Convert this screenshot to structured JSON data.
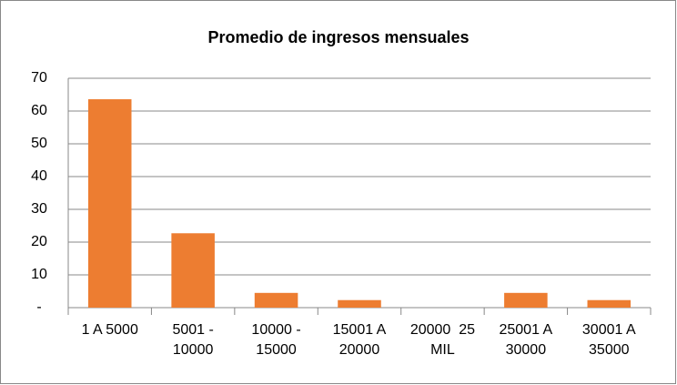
{
  "chart_data": {
    "type": "bar",
    "title": "Promedio de ingresos mensuales",
    "categories": [
      "1 A 5000",
      "5001 - 10000",
      "10000 - 15000",
      "15001 A 20000",
      "20000  25 MIL",
      "25001 A 30000",
      "30001 A 35000"
    ],
    "values": [
      63.6,
      22.7,
      4.5,
      2.3,
      0,
      4.5,
      2.3
    ],
    "color": "#ed7d31",
    "ylim": [
      0,
      70
    ],
    "yticks": [
      {
        "value": 0,
        "label": "-"
      },
      10,
      20,
      30,
      40,
      50,
      60,
      70
    ],
    "grid": true
  }
}
